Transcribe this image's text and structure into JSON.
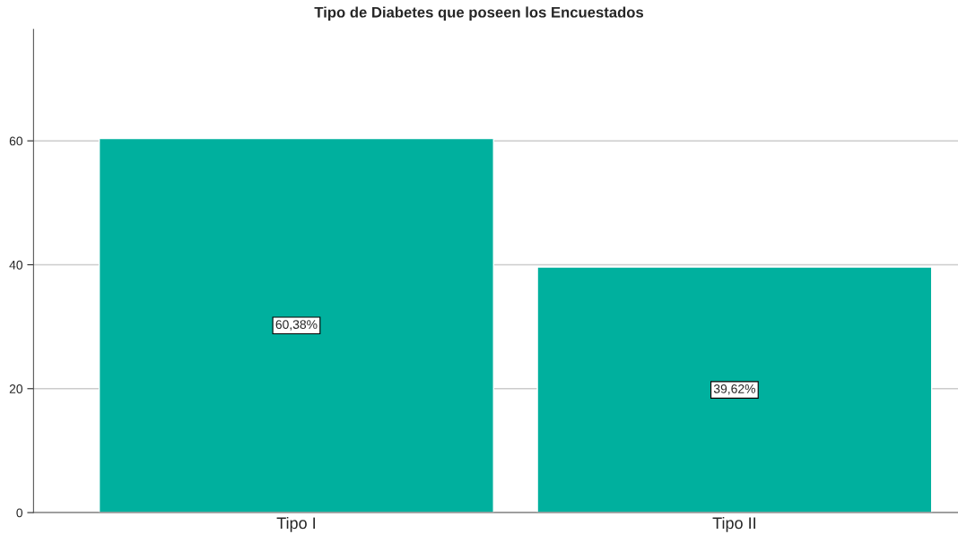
{
  "chart_data": {
    "type": "bar",
    "title": "Tipo de Diabetes que poseen los Encuestados",
    "categories": [
      "Tipo I",
      "Tipo II"
    ],
    "values": [
      60.38,
      39.62
    ],
    "value_labels": [
      "60,38%",
      "39,62%"
    ],
    "color": "#00b09e",
    "ylim": [
      0,
      78
    ],
    "yticks": [
      0,
      20,
      40,
      60
    ],
    "grid": "y"
  }
}
